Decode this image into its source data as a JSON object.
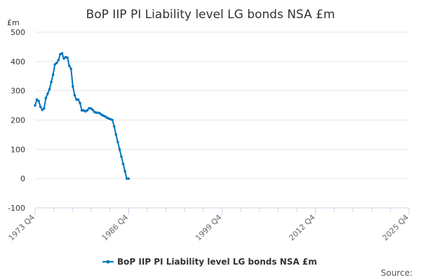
{
  "chart_data": {
    "type": "line",
    "title": "BoP IIP PI Liability level LG bonds NSA £m",
    "ylabel": "£m",
    "xlabel": "",
    "ylim": [
      -100,
      500
    ],
    "yticks": [
      -100,
      0,
      100,
      200,
      300,
      400,
      500
    ],
    "xlim": [
      1973.75,
      2025.75
    ],
    "xticks": [
      {
        "value": 1973.75,
        "label": "1973 Q4"
      },
      {
        "value": 1986.75,
        "label": "1986 Q4"
      },
      {
        "value": 1999.75,
        "label": "1999 Q4"
      },
      {
        "value": 2012.75,
        "label": "2012 Q4"
      },
      {
        "value": 2025.75,
        "label": "2025 Q4"
      }
    ],
    "legend": "bottom-center",
    "color": "#0076bd",
    "source_label": "Source:",
    "series": [
      {
        "name": "BoP IIP PI Liability level LG bonds NSA £m",
        "x": [
          1973.75,
          1974.0,
          1974.25,
          1974.5,
          1974.75,
          1975.0,
          1975.25,
          1975.5,
          1975.75,
          1976.0,
          1976.25,
          1976.5,
          1976.75,
          1977.0,
          1977.25,
          1977.5,
          1977.75,
          1978.0,
          1978.25,
          1978.5,
          1978.75,
          1979.0,
          1979.25,
          1979.5,
          1979.75,
          1980.0,
          1980.25,
          1980.5,
          1980.75,
          1981.0,
          1981.25,
          1981.5,
          1981.75,
          1982.0,
          1982.25,
          1982.5,
          1982.75,
          1983.0,
          1983.25,
          1983.5,
          1983.75,
          1984.0,
          1984.25,
          1984.5,
          1984.75,
          1985.0,
          1985.25,
          1985.5,
          1985.75,
          1986.0,
          1986.25,
          1986.5,
          1986.75
        ],
        "values": [
          250,
          270,
          265,
          245,
          235,
          240,
          275,
          290,
          305,
          330,
          355,
          390,
          395,
          405,
          425,
          428,
          410,
          415,
          413,
          385,
          375,
          315,
          285,
          270,
          270,
          258,
          233,
          233,
          230,
          233,
          240,
          240,
          235,
          228,
          225,
          225,
          223,
          218,
          215,
          212,
          208,
          205,
          203,
          200,
          178,
          150,
          125,
          100,
          75,
          50,
          25,
          0,
          0
        ]
      }
    ]
  }
}
